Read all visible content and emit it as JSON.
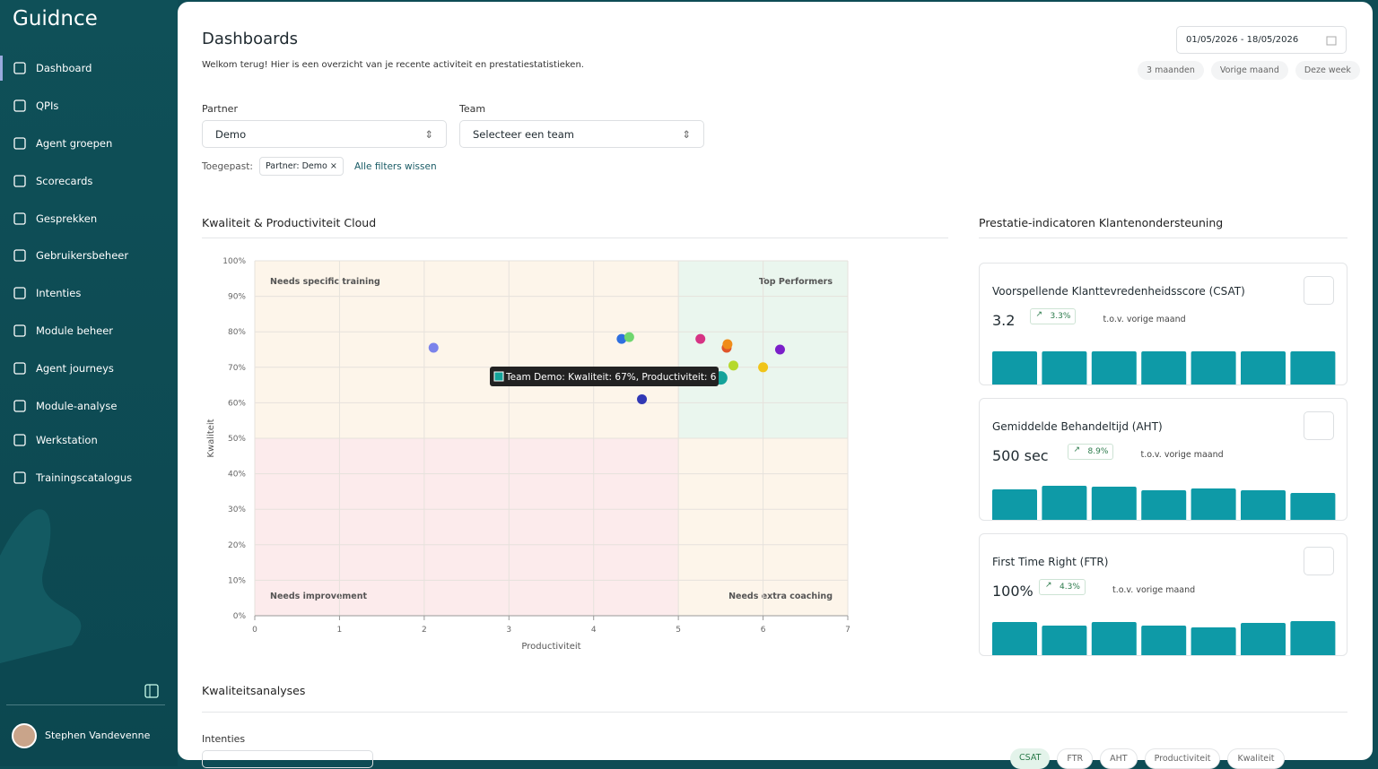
{
  "sidebar": {
    "logo": "Guidnce",
    "nav": [
      "Dashboard",
      "QPIs",
      "Agent groepen",
      "Scorecards",
      "Gesprekken",
      "Gebruikersbeheer",
      "Intenties",
      "Module beheer",
      "Agent journeys",
      "Module-analyse",
      "Werkstation",
      "Trainingscatalogus"
    ],
    "user": "Stephen Vandevenne"
  },
  "header": {
    "title": "Dashboards",
    "subtitle": "Welkom terug! Hier is een overzicht van je recente activiteit en prestatiestatistieken.",
    "date_range": "01/05/2026 - 18/05/2026",
    "quick_ranges": [
      "3 maanden",
      "Vorige maand",
      "Deze week"
    ]
  },
  "filters": {
    "partner_label": "Partner",
    "partner_value": "Demo",
    "team_label": "Team",
    "team_placeholder": "Selecteer een team",
    "applied_label": "Toegepast:",
    "chip": "Partner: Demo",
    "clear": "Alle filters wissen"
  },
  "chart_data": {
    "type": "scatter",
    "title": "Kwaliteit & Productiviteit Cloud",
    "x_label": "Productiviteit",
    "y_label": "Kwaliteit",
    "xlim": [
      0,
      7
    ],
    "xticks": [
      0,
      1,
      2,
      3,
      4,
      5,
      6,
      7
    ],
    "ylim": [
      0,
      100
    ],
    "yticks": [
      {
        "value": 0,
        "label": "0%"
      },
      {
        "value": 10,
        "label": "10%"
      },
      {
        "value": 20,
        "label": "20%"
      },
      {
        "value": 30,
        "label": "30%"
      },
      {
        "value": 40,
        "label": "40%"
      },
      {
        "value": 50,
        "label": "50%"
      },
      {
        "value": 60,
        "label": "60%"
      },
      {
        "value": 70,
        "label": "70%"
      },
      {
        "value": 80,
        "label": "80%"
      },
      {
        "value": 90,
        "label": "90%"
      },
      {
        "value": 100,
        "label": "100%"
      }
    ],
    "grid": true,
    "quadrants": [
      {
        "label": "Needs specific training",
        "xrange": [
          0,
          5
        ],
        "yrange": [
          50,
          100
        ],
        "color": "#fdf5ea"
      },
      {
        "label": "Top Performers",
        "xrange": [
          5,
          7
        ],
        "yrange": [
          50,
          100
        ],
        "color": "#eaf6ee"
      },
      {
        "label": "Needs improvement",
        "xrange": [
          0,
          5
        ],
        "yrange": [
          0,
          50
        ],
        "color": "#fcebec"
      },
      {
        "label": "Needs extra coaching",
        "xrange": [
          5,
          7
        ],
        "yrange": [
          0,
          50
        ],
        "color": "#fdf5ea"
      }
    ],
    "x": [
      2.11,
      4.33,
      4.42,
      5.26,
      5.57,
      5.58,
      6.2,
      5.65,
      6.0,
      5.5,
      4.57
    ],
    "values": [
      75.5,
      78,
      78.5,
      78,
      75.5,
      76.5,
      75,
      70.5,
      70,
      67,
      61
    ],
    "colors": [
      "#7b83eb",
      "#2f6fdf",
      "#6fd66f",
      "#d63384",
      "#e0552a",
      "#f08c1a",
      "#7b1fc9",
      "#b5d92b",
      "#f0c419",
      "#14a39a",
      "#3138b5"
    ],
    "tooltip": "Team Demo: Kwaliteit: 67%, Productiviteit: 6"
  },
  "kpi": {
    "title": "Prestatie-indicatoren Klantenondersteuning",
    "cards": [
      {
        "title": "Voorspellende Klanttevredenheidsscore (CSAT)",
        "value": "3.2",
        "change": "3.3%",
        "comparison": "t.o.v. vorige maand",
        "bars": [
          40,
          40,
          40,
          40,
          40,
          40,
          40
        ]
      },
      {
        "title": "Gemiddelde Behandeltijd (AHT)",
        "value": "500 sec",
        "change": "8.9%",
        "comparison": "t.o.v. vorige maand",
        "bars": [
          37,
          41,
          40,
          36,
          38,
          36,
          33
        ]
      },
      {
        "title": "First Time Right (FTR)",
        "value": "100%",
        "change": "4.3%",
        "comparison": "t.o.v. vorige maand",
        "bars": [
          40,
          36,
          40,
          36,
          34,
          39,
          41
        ]
      }
    ]
  },
  "analysis": {
    "title": "Kwaliteitsanalyses",
    "intenties_label": "Intenties",
    "tabs": [
      "CSAT",
      "FTR",
      "AHT",
      "Productiviteit",
      "Kwaliteit"
    ]
  }
}
